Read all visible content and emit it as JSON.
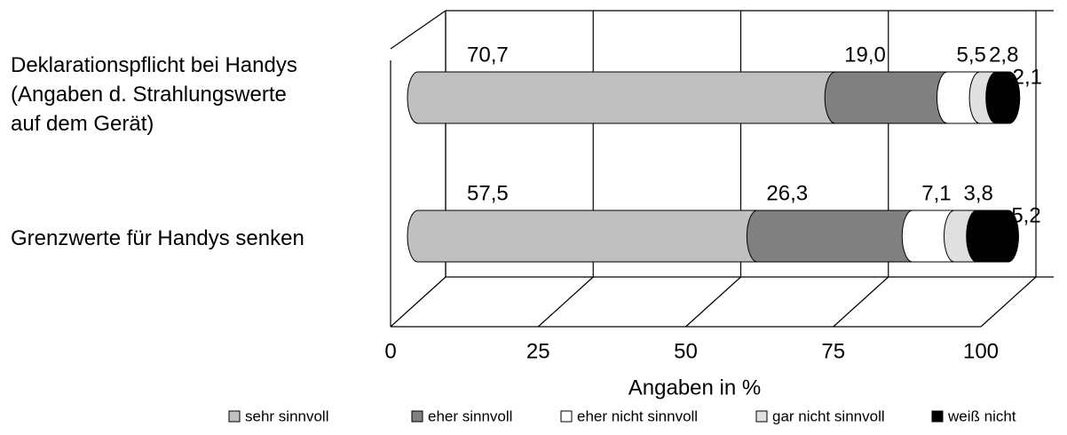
{
  "chart_data": {
    "type": "bar3d-stacked-horizontal",
    "categories": [
      "Deklarationspflicht bei Handys\n(Angaben d. Strahlungswerte\nauf dem Gerät)",
      "Grenzwerte für Handys senken"
    ],
    "series": [
      {
        "name": "sehr sinnvoll",
        "color": "#c0c0c0",
        "values": [
          70.7,
          57.5
        ],
        "value_labels": [
          "70,7",
          "57,5"
        ]
      },
      {
        "name": "eher sinnvoll",
        "color": "#808080",
        "values": [
          19.0,
          26.3
        ],
        "value_labels": [
          "19,0",
          "26,3"
        ]
      },
      {
        "name": "eher nicht sinnvoll",
        "color": "#ffffff",
        "values": [
          5.5,
          7.1
        ],
        "value_labels": [
          "5,5",
          "7,1"
        ]
      },
      {
        "name": "gar nicht sinnvoll",
        "color": "#e0e0e0",
        "values": [
          2.8,
          3.8
        ],
        "value_labels": [
          "2,8",
          "3,8"
        ]
      },
      {
        "name": "weiß nicht",
        "color": "#000000",
        "values": [
          2.1,
          5.2
        ],
        "value_labels": [
          "2,1",
          "5,2"
        ]
      }
    ],
    "xlabel": "Angaben in %",
    "xlim": [
      0,
      100
    ],
    "xticks": [
      0,
      25,
      50,
      75,
      100
    ],
    "grid": true,
    "legend": "bottom"
  }
}
